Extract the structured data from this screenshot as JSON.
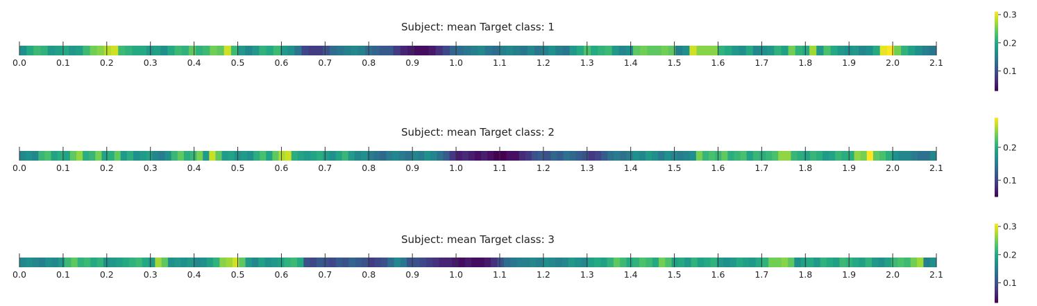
{
  "chart_data": [
    {
      "type": "heatmap",
      "title": "Subject: mean Target class: 1",
      "x_ticks": [
        "0.0",
        "0.1",
        "0.2",
        "0.3",
        "0.4",
        "0.5",
        "0.6",
        "0.7",
        "0.8",
        "0.9",
        "1.0",
        "1.1",
        "1.2",
        "1.3",
        "1.4",
        "1.5",
        "1.6",
        "1.7",
        "1.8",
        "1.9",
        "2.0",
        "2.1"
      ],
      "x_range": [
        0.0,
        2.1
      ],
      "colormap": "viridis",
      "color_range": [
        0.03,
        0.31
      ],
      "colorbar_ticks": [
        "0.1",
        "0.2",
        "0.3"
      ],
      "colorbar_tick_values": [
        0.1,
        0.2,
        0.3
      ],
      "values": [
        0.17,
        0.2,
        0.22,
        0.21,
        0.18,
        0.19,
        0.2,
        0.18,
        0.19,
        0.22,
        0.25,
        0.26,
        0.28,
        0.29,
        0.22,
        0.21,
        0.2,
        0.2,
        0.18,
        0.19,
        0.17,
        0.2,
        0.22,
        0.21,
        0.24,
        0.21,
        0.22,
        0.25,
        0.24,
        0.29,
        0.22,
        0.18,
        0.16,
        0.18,
        0.21,
        0.2,
        0.22,
        0.18,
        0.17,
        0.14,
        0.09,
        0.08,
        0.08,
        0.1,
        0.13,
        0.14,
        0.15,
        0.16,
        0.15,
        0.13,
        0.12,
        0.11,
        0.11,
        0.08,
        0.06,
        0.05,
        0.04,
        0.04,
        0.05,
        0.07,
        0.09,
        0.12,
        0.13,
        0.14,
        0.15,
        0.16,
        0.14,
        0.13,
        0.15,
        0.16,
        0.15,
        0.14,
        0.16,
        0.14,
        0.15,
        0.17,
        0.15,
        0.14,
        0.18,
        0.2,
        0.23,
        0.2,
        0.21,
        0.22,
        0.18,
        0.16,
        0.17,
        0.24,
        0.25,
        0.24,
        0.24,
        0.25,
        0.24,
        0.15,
        0.17,
        0.29,
        0.26,
        0.26,
        0.26,
        0.21,
        0.2,
        0.18,
        0.17,
        0.2,
        0.16,
        0.17,
        0.18,
        0.21,
        0.19,
        0.25,
        0.21,
        0.2,
        0.27,
        0.18,
        0.23,
        0.2,
        0.18,
        0.17,
        0.18,
        0.16,
        0.17,
        0.2,
        0.3,
        0.31,
        0.25,
        0.21,
        0.19,
        0.17,
        0.15,
        0.14
      ]
    },
    {
      "type": "heatmap",
      "title": "Subject: mean Target class: 2",
      "x_ticks": [
        "0.0",
        "0.1",
        "0.2",
        "0.3",
        "0.4",
        "0.5",
        "0.6",
        "0.7",
        "0.8",
        "0.9",
        "1.0",
        "1.1",
        "1.2",
        "1.3",
        "1.4",
        "1.5",
        "1.6",
        "1.7",
        "1.8",
        "1.9",
        "2.0",
        "2.1"
      ],
      "x_range": [
        0.0,
        2.1
      ],
      "colormap": "viridis",
      "color_range": [
        0.05,
        0.29
      ],
      "colorbar_ticks": [
        "0.1",
        "0.2"
      ],
      "colorbar_tick_values": [
        0.1,
        0.2
      ],
      "values": [
        0.16,
        0.17,
        0.16,
        0.21,
        0.22,
        0.19,
        0.2,
        0.19,
        0.23,
        0.25,
        0.2,
        0.21,
        0.24,
        0.19,
        0.2,
        0.23,
        0.18,
        0.2,
        0.17,
        0.18,
        0.19,
        0.16,
        0.15,
        0.17,
        0.21,
        0.23,
        0.2,
        0.21,
        0.24,
        0.18,
        0.27,
        0.23,
        0.18,
        0.19,
        0.17,
        0.18,
        0.17,
        0.2,
        0.22,
        0.19,
        0.23,
        0.26,
        0.27,
        0.2,
        0.19,
        0.18,
        0.19,
        0.2,
        0.18,
        0.17,
        0.19,
        0.21,
        0.18,
        0.16,
        0.17,
        0.15,
        0.14,
        0.13,
        0.15,
        0.16,
        0.15,
        0.14,
        0.16,
        0.15,
        0.17,
        0.16,
        0.14,
        0.12,
        0.09,
        0.07,
        0.08,
        0.07,
        0.06,
        0.07,
        0.06,
        0.05,
        0.05,
        0.06,
        0.06,
        0.08,
        0.09,
        0.11,
        0.12,
        0.11,
        0.13,
        0.12,
        0.14,
        0.13,
        0.12,
        0.11,
        0.09,
        0.1,
        0.12,
        0.14,
        0.15,
        0.14,
        0.15,
        0.17,
        0.16,
        0.18,
        0.17,
        0.15,
        0.17,
        0.16,
        0.15,
        0.16,
        0.17,
        0.24,
        0.21,
        0.22,
        0.21,
        0.23,
        0.2,
        0.21,
        0.22,
        0.19,
        0.21,
        0.2,
        0.21,
        0.22,
        0.25,
        0.25,
        0.21,
        0.2,
        0.19,
        0.21,
        0.2,
        0.18,
        0.19,
        0.21,
        0.2,
        0.2,
        0.25,
        0.24,
        0.29,
        0.23,
        0.22,
        0.2,
        0.17,
        0.16,
        0.16,
        0.15,
        0.14,
        0.14,
        0.16
      ]
    },
    {
      "type": "heatmap",
      "title": "Subject: mean Target class: 3",
      "x_ticks": [
        "0.0",
        "0.1",
        "0.2",
        "0.3",
        "0.4",
        "0.5",
        "0.6",
        "0.7",
        "0.8",
        "0.9",
        "1.0",
        "1.1",
        "1.2",
        "1.3",
        "1.4",
        "1.5",
        "1.6",
        "1.7",
        "1.8",
        "1.9",
        "2.0",
        "2.1"
      ],
      "x_range": [
        0.0,
        2.1
      ],
      "colormap": "viridis",
      "color_range": [
        0.03,
        0.31
      ],
      "colorbar_ticks": [
        "0.1",
        "0.2",
        "0.3"
      ],
      "colorbar_tick_values": [
        0.1,
        0.2,
        0.3
      ],
      "values": [
        0.16,
        0.17,
        0.16,
        0.15,
        0.17,
        0.16,
        0.18,
        0.22,
        0.24,
        0.21,
        0.22,
        0.2,
        0.21,
        0.17,
        0.18,
        0.19,
        0.2,
        0.21,
        0.22,
        0.2,
        0.18,
        0.27,
        0.24,
        0.17,
        0.18,
        0.17,
        0.18,
        0.16,
        0.17,
        0.19,
        0.21,
        0.26,
        0.27,
        0.29,
        0.24,
        0.18,
        0.16,
        0.19,
        0.17,
        0.18,
        0.19,
        0.21,
        0.22,
        0.2,
        0.1,
        0.09,
        0.11,
        0.1,
        0.09,
        0.11,
        0.1,
        0.12,
        0.11,
        0.1,
        0.08,
        0.09,
        0.1,
        0.13,
        0.16,
        0.14,
        0.1,
        0.1,
        0.09,
        0.08,
        0.07,
        0.06,
        0.06,
        0.05,
        0.04,
        0.05,
        0.04,
        0.04,
        0.05,
        0.07,
        0.1,
        0.13,
        0.14,
        0.15,
        0.15,
        0.16,
        0.15,
        0.17,
        0.16,
        0.15,
        0.16,
        0.18,
        0.17,
        0.16,
        0.19,
        0.2,
        0.19,
        0.21,
        0.24,
        0.22,
        0.2,
        0.21,
        0.23,
        0.22,
        0.2,
        0.25,
        0.23,
        0.19,
        0.2,
        0.18,
        0.21,
        0.19,
        0.2,
        0.21,
        0.18,
        0.17,
        0.18,
        0.2,
        0.19,
        0.18,
        0.2,
        0.21,
        0.25,
        0.25,
        0.26,
        0.24,
        0.17,
        0.19,
        0.2,
        0.18,
        0.21,
        0.2,
        0.19,
        0.22,
        0.21,
        0.2,
        0.19,
        0.21,
        0.18,
        0.17,
        0.19,
        0.22,
        0.23,
        0.22,
        0.25,
        0.27,
        0.15,
        0.17
      ]
    }
  ]
}
